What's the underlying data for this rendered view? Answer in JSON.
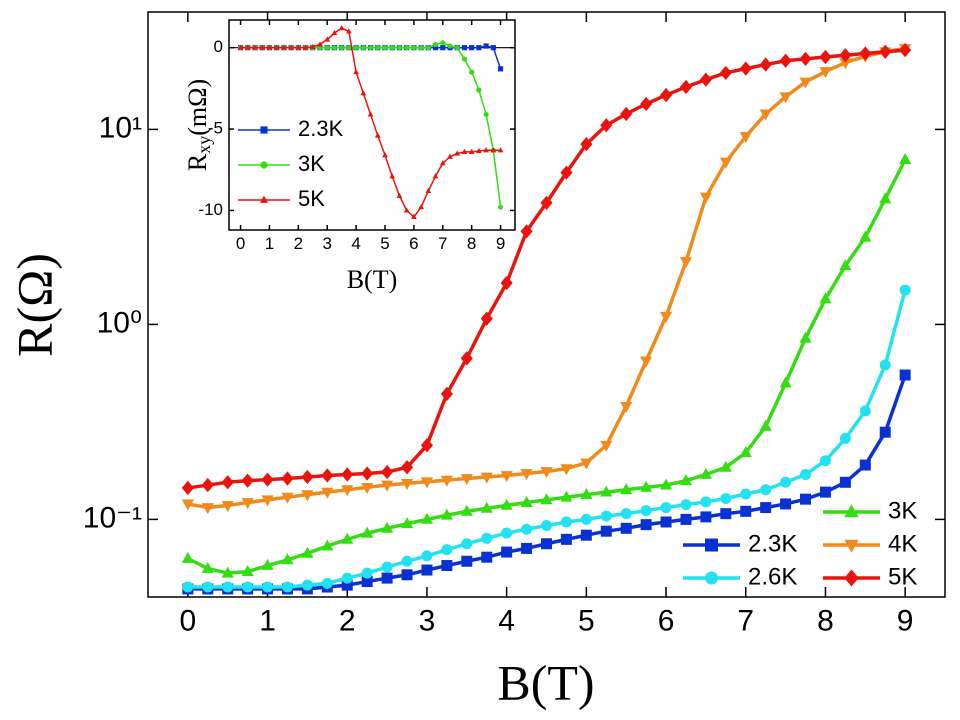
{
  "chart_data": [
    {
      "type": "line",
      "xlabel": "B(T)",
      "ylabel": "R(Ω)",
      "yscale": "log",
      "legend": "lower right",
      "x": [
        0,
        0.25,
        0.5,
        0.75,
        1,
        1.25,
        1.5,
        1.75,
        2,
        2.25,
        2.5,
        2.75,
        3,
        3.25,
        3.5,
        3.75,
        4,
        4.25,
        4.5,
        4.75,
        5,
        5.25,
        5.5,
        5.75,
        6,
        6.25,
        6.5,
        6.75,
        7,
        7.25,
        7.5,
        7.75,
        8,
        8.25,
        8.5,
        8.75,
        9
      ],
      "xlim": [
        -0.5,
        9.5
      ],
      "xticks": [
        0,
        1,
        2,
        3,
        4,
        5,
        6,
        7,
        8,
        9
      ],
      "ylim": [
        0.04,
        40
      ],
      "yticks": [
        {
          "value": 0.1,
          "label": "10⁻¹"
        },
        {
          "value": 1,
          "label": "10⁰"
        },
        {
          "value": 10,
          "label": "10¹"
        }
      ],
      "series": [
        {
          "name": "2.3K",
          "color": "#0a32d2",
          "marker": "square",
          "values": [
            0.044,
            0.044,
            0.044,
            0.044,
            0.044,
            0.044,
            0.044,
            0.045,
            0.046,
            0.048,
            0.05,
            0.052,
            0.055,
            0.058,
            0.061,
            0.064,
            0.068,
            0.071,
            0.075,
            0.079,
            0.083,
            0.087,
            0.09,
            0.094,
            0.097,
            0.1,
            0.103,
            0.107,
            0.11,
            0.115,
            0.12,
            0.127,
            0.138,
            0.155,
            0.19,
            0.28,
            0.55
          ]
        },
        {
          "name": "2.6K",
          "color": "#22e2f2",
          "marker": "circle",
          "values": [
            0.045,
            0.045,
            0.045,
            0.045,
            0.045,
            0.045,
            0.046,
            0.047,
            0.05,
            0.053,
            0.057,
            0.061,
            0.065,
            0.07,
            0.075,
            0.08,
            0.085,
            0.089,
            0.093,
            0.097,
            0.1,
            0.104,
            0.107,
            0.111,
            0.115,
            0.119,
            0.123,
            0.128,
            0.135,
            0.142,
            0.155,
            0.17,
            0.2,
            0.26,
            0.36,
            0.62,
            1.5
          ]
        },
        {
          "name": "3K",
          "color": "#33dd11",
          "marker": "triangle-up",
          "values": [
            0.063,
            0.056,
            0.053,
            0.054,
            0.058,
            0.062,
            0.067,
            0.073,
            0.079,
            0.085,
            0.09,
            0.095,
            0.1,
            0.105,
            0.11,
            0.114,
            0.118,
            0.122,
            0.126,
            0.13,
            0.134,
            0.138,
            0.142,
            0.146,
            0.15,
            0.158,
            0.17,
            0.185,
            0.22,
            0.3,
            0.5,
            0.85,
            1.35,
            2.0,
            2.8,
            4.4,
            7
          ]
        },
        {
          "name": "4K",
          "color": "#f08a1a",
          "marker": "triangle-down",
          "values": [
            0.12,
            0.115,
            0.118,
            0.122,
            0.126,
            0.13,
            0.134,
            0.138,
            0.142,
            0.146,
            0.15,
            0.153,
            0.156,
            0.159,
            0.162,
            0.165,
            0.168,
            0.172,
            0.176,
            0.182,
            0.195,
            0.24,
            0.38,
            0.65,
            1.1,
            2.1,
            4.5,
            6.8,
            9.2,
            12,
            14.7,
            17.5,
            19.8,
            22,
            23.7,
            25,
            26
          ]
        },
        {
          "name": "5K",
          "color": "#e8140d",
          "marker": "diamond",
          "values": [
            0.145,
            0.15,
            0.155,
            0.158,
            0.16,
            0.162,
            0.165,
            0.168,
            0.17,
            0.172,
            0.175,
            0.185,
            0.24,
            0.44,
            0.67,
            1.07,
            1.63,
            3.0,
            4.2,
            6.0,
            8.4,
            10.5,
            12,
            13.5,
            15,
            16.5,
            18,
            19.5,
            20.5,
            21.5,
            22.5,
            23,
            23.5,
            24,
            24.5,
            25,
            25.5
          ]
        }
      ]
    },
    {
      "type": "line",
      "xlabel": "B(T)",
      "ylabel": {
        "main": "R",
        "sub": "xy",
        "unit": "(mΩ)"
      },
      "legend": "center left",
      "x": [
        0,
        0.25,
        0.5,
        0.75,
        1,
        1.25,
        1.5,
        1.75,
        2,
        2.25,
        2.5,
        2.75,
        3,
        3.25,
        3.5,
        3.75,
        4,
        4.25,
        4.5,
        4.75,
        5,
        5.25,
        5.5,
        5.75,
        6,
        6.25,
        6.5,
        6.75,
        7,
        7.25,
        7.5,
        7.75,
        8,
        8.25,
        8.5,
        8.75,
        9
      ],
      "xlim": [
        -0.4,
        9.5
      ],
      "xticks": [
        0,
        1,
        2,
        3,
        4,
        5,
        6,
        7,
        8,
        9
      ],
      "ylim": [
        -11.2,
        1.7
      ],
      "yticks": [
        0,
        -5,
        -10
      ],
      "series": [
        {
          "name": "2.3K",
          "color": "#0a32d2",
          "marker": "square",
          "values": [
            0,
            0,
            0,
            0,
            0,
            0,
            0,
            0,
            0,
            0,
            0,
            0,
            0,
            0,
            0,
            0,
            0,
            0,
            0,
            0,
            0,
            0,
            0,
            0,
            0,
            0,
            0,
            0,
            0,
            0,
            0,
            0,
            0,
            0,
            0.1,
            0,
            -1.3
          ]
        },
        {
          "name": "3K",
          "color": "#33dd11",
          "marker": "circle",
          "values": [
            0,
            0,
            0,
            0,
            0,
            0,
            0,
            0,
            0,
            0,
            0,
            0,
            0,
            0,
            0,
            0,
            0,
            0,
            0,
            0,
            0,
            0,
            0,
            0,
            0,
            0,
            0,
            0.2,
            0.3,
            0.1,
            0,
            -0.7,
            -1.5,
            -2.6,
            -4.1,
            -6.3,
            -9.8
          ]
        },
        {
          "name": "5K",
          "color": "#e8140d",
          "marker": "triangle-up",
          "values": [
            0,
            0,
            0,
            0,
            0,
            0,
            0,
            0,
            0,
            0,
            0.05,
            0.2,
            0.5,
            0.9,
            1.2,
            1.0,
            -1.5,
            -2.8,
            -4.1,
            -5.4,
            -6.6,
            -7.9,
            -9.1,
            -10.0,
            -10.4,
            -9.8,
            -8.8,
            -7.9,
            -7.1,
            -6.7,
            -6.5,
            -6.4,
            -6.4,
            -6.35,
            -6.3,
            -6.3,
            -6.3
          ]
        }
      ]
    }
  ]
}
